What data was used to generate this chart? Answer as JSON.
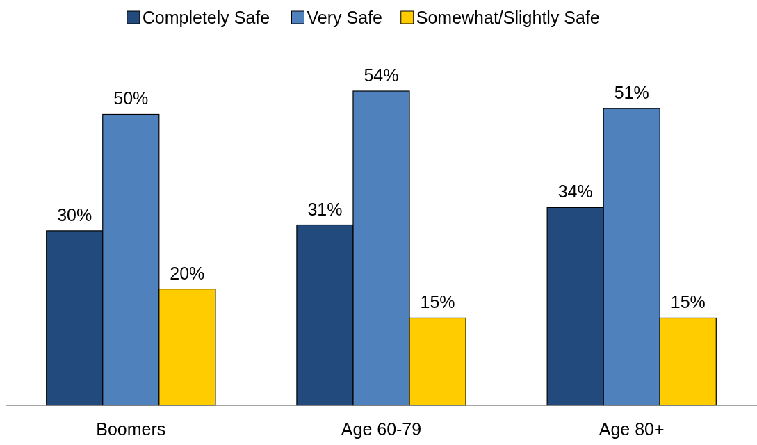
{
  "chart_data": {
    "type": "bar",
    "categories": [
      "Boomers",
      "Age 60-79",
      "Age 80+"
    ],
    "series": [
      {
        "name": "Completely Safe",
        "color": "#234a7c",
        "values": [
          30,
          31,
          34
        ],
        "value_labels": [
          "30%",
          "31%",
          "34%"
        ]
      },
      {
        "name": "Very Safe",
        "color": "#4f81bd",
        "values": [
          50,
          54,
          51
        ],
        "value_labels": [
          "50%",
          "54%",
          "51%"
        ]
      },
      {
        "name": "Somewhat/Slightly Safe",
        "color": "#ffcc00",
        "values": [
          20,
          15,
          15
        ],
        "value_labels": [
          "20%",
          "15%",
          "15%"
        ]
      }
    ],
    "legend": "top",
    "grid": false
  }
}
